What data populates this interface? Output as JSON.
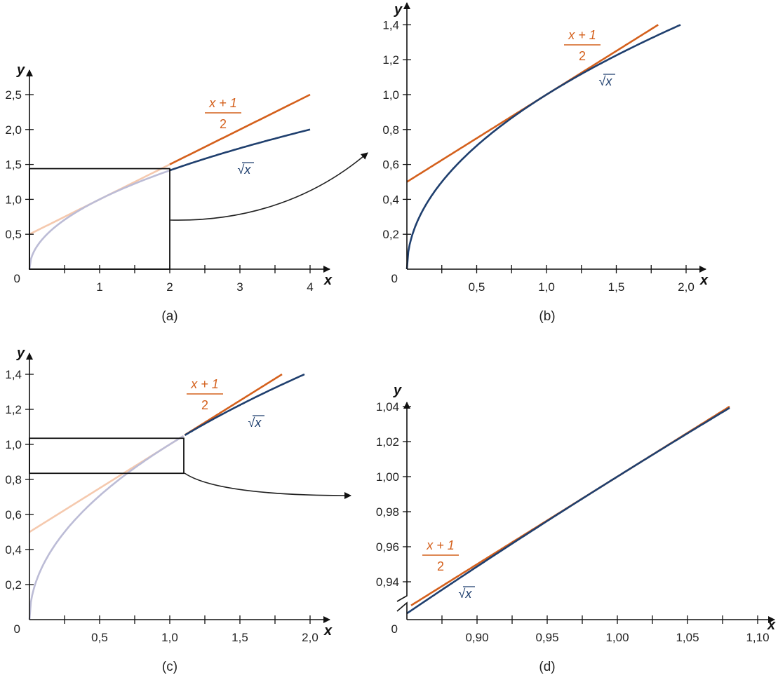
{
  "colors": {
    "tangent": "#d4601c",
    "sqrt": "#1f3f6e",
    "axis": "#111111",
    "faded_tangent": "#f5c9ae",
    "faded_sqrt": "#bcbcd6"
  },
  "labels": {
    "tangent_num": "x + 1",
    "tangent_den": "2",
    "sqrt": "√x"
  },
  "chart_data": [
    {
      "type": "line",
      "caption": "(a)",
      "xlabel": "x",
      "ylabel": "y",
      "origin_label": "0",
      "xlim": [
        0,
        4.25
      ],
      "ylim": [
        0,
        2.75
      ],
      "xticks": [
        1,
        2,
        3,
        4
      ],
      "xtick_labels": [
        "1",
        "2",
        "3",
        "4"
      ],
      "xminor": [
        0.5,
        1.5,
        2.5,
        3.5
      ],
      "yticks": [
        0.5,
        1.0,
        1.5,
        2.0,
        2.5
      ],
      "ytick_labels": [
        "0,5",
        "1,0",
        "1,5",
        "2,0",
        "2,5"
      ],
      "series": [
        {
          "name": "(x+1)/2",
          "fn": "tangent",
          "x": [
            0,
            4
          ]
        },
        {
          "name": "√x",
          "fn": "sqrt",
          "x": [
            0,
            4
          ]
        }
      ],
      "zoom_box": {
        "x": [
          0,
          2
        ],
        "y": [
          0,
          1.44
        ]
      }
    },
    {
      "type": "line",
      "caption": "(b)",
      "xlabel": "x",
      "ylabel": "y",
      "origin_label": "0",
      "xlim": [
        0,
        2.1
      ],
      "ylim": [
        0,
        1.5
      ],
      "xticks": [
        0.5,
        1.0,
        1.5,
        2.0
      ],
      "xtick_labels": [
        "0,5",
        "1,0",
        "1,5",
        "2,0"
      ],
      "xminor": [
        0.25,
        0.75,
        1.25,
        1.75
      ],
      "yticks": [
        0.2,
        0.4,
        0.6,
        0.8,
        1.0,
        1.2,
        1.4
      ],
      "ytick_labels": [
        "0,2",
        "0,4",
        "0,6",
        "0,8",
        "1,0",
        "1,2",
        "1,4"
      ],
      "series": [
        {
          "name": "(x+1)/2",
          "fn": "tangent",
          "x": [
            0,
            1.8
          ]
        },
        {
          "name": "√x",
          "fn": "sqrt",
          "x": [
            0,
            1.96
          ]
        }
      ]
    },
    {
      "type": "line",
      "caption": "(c)",
      "xlabel": "x",
      "ylabel": "y",
      "origin_label": "0",
      "xlim": [
        0,
        2.1
      ],
      "ylim": [
        0,
        1.5
      ],
      "xticks": [
        0.5,
        1.0,
        1.5,
        2.0
      ],
      "xtick_labels": [
        "0,5",
        "1,0",
        "1,5",
        "2,0"
      ],
      "xminor": [
        0.25,
        0.75,
        1.25,
        1.75
      ],
      "yticks": [
        0.2,
        0.4,
        0.6,
        0.8,
        1.0,
        1.2,
        1.4
      ],
      "ytick_labels": [
        "0,2",
        "0,4",
        "0,6",
        "0,8",
        "1,0",
        "1,2",
        "1,4"
      ],
      "series": [
        {
          "name": "(x+1)/2",
          "fn": "tangent",
          "x": [
            0,
            1.8
          ]
        },
        {
          "name": "√x",
          "fn": "sqrt",
          "x": [
            0,
            1.96
          ]
        }
      ],
      "zoom_box": {
        "x": [
          0,
          1.1
        ],
        "y": [
          0.835,
          1.035
        ]
      }
    },
    {
      "type": "line",
      "caption": "(d)",
      "xlabel": "x",
      "ylabel": "y",
      "origin_label": "0",
      "xlim": [
        0.85,
        1.115
      ],
      "ylim": [
        0.9184,
        1.05
      ],
      "xticks": [
        0.9,
        0.95,
        1.0,
        1.05,
        1.1
      ],
      "xtick_labels": [
        "0,90",
        "0,95",
        "1,00",
        "1,05",
        "1,10"
      ],
      "xminor": [
        0.875,
        0.925,
        0.975,
        1.025,
        1.075
      ],
      "yticks": [
        0.94,
        0.96,
        0.98,
        1.0,
        1.02,
        1.04
      ],
      "ytick_labels": [
        "0,94",
        "0,96",
        "0,98",
        "1,00",
        "1,02",
        "1,04"
      ],
      "axis_break": "y",
      "series": [
        {
          "name": "(x+1)/2",
          "fn": "tangent",
          "x": [
            0.853,
            1.08
          ]
        },
        {
          "name": "√x",
          "fn": "sqrt",
          "x": [
            0.85,
            1.08
          ]
        }
      ]
    }
  ]
}
